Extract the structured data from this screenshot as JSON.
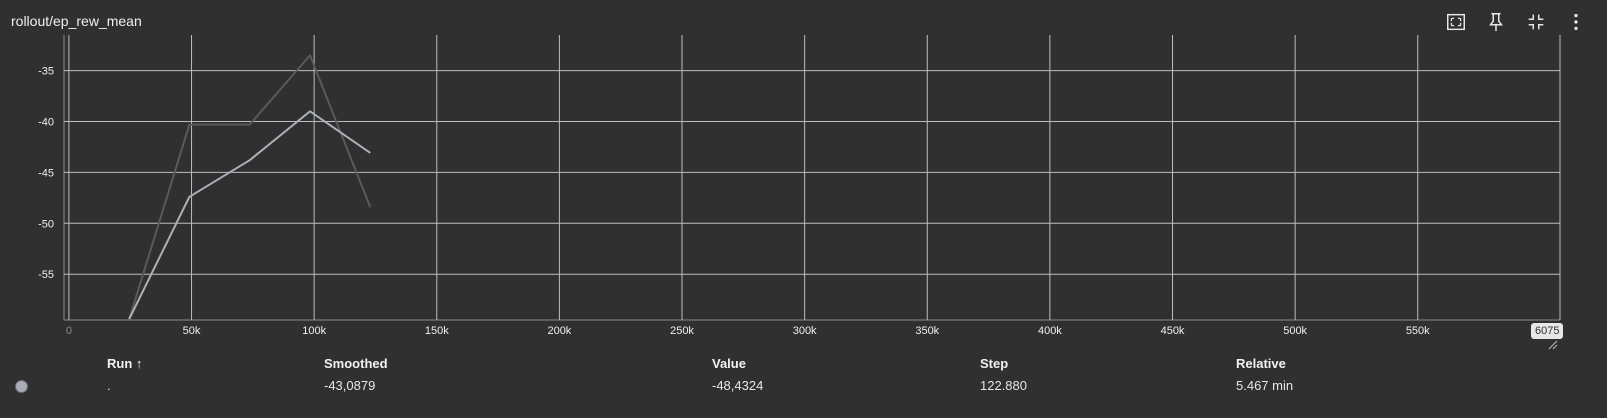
{
  "card": {
    "title": "rollout/ep_rew_mean",
    "toolbar": [
      {
        "name": "fit-domain-icon",
        "label": "Fit domain to data"
      },
      {
        "name": "pin-icon",
        "label": "Pin card"
      },
      {
        "name": "collapse-icon",
        "label": "Exit full size"
      },
      {
        "name": "more-vert-icon",
        "label": "More options"
      }
    ]
  },
  "chart_data": {
    "type": "line",
    "title": "rollout/ep_rew_mean",
    "xlabel": "",
    "ylabel": "",
    "xlim": [
      -2000,
      608000
    ],
    "ylim": [
      -59.5,
      -31.5
    ],
    "x_ticks": [
      0,
      50000,
      100000,
      150000,
      200000,
      250000,
      300000,
      350000,
      400000,
      450000,
      500000,
      550000
    ],
    "x_tick_labels": [
      "0",
      "50k",
      "100k",
      "150k",
      "200k",
      "250k",
      "300k",
      "350k",
      "400k",
      "450k",
      "500k",
      "550k"
    ],
    "y_ticks": [
      -35,
      -40,
      -45,
      -50,
      -55
    ],
    "y_tick_labels": [
      "-35",
      "-40",
      "-45",
      "-50",
      "-55"
    ],
    "x_edge_label": "6075",
    "grid": true,
    "series": [
      {
        "role": "raw",
        "color": "#5a5a5a",
        "x": [
          24576,
          49152,
          73728,
          98304,
          122880
        ],
        "y": [
          -59.4,
          -40.3,
          -40.3,
          -33.5,
          -48.4324
        ]
      },
      {
        "role": "smoothed",
        "color": "#aab0ba",
        "x": [
          24576,
          49152,
          73728,
          98304,
          122880
        ],
        "y": [
          -59.4,
          -47.4,
          -43.8,
          -39.0,
          -43.0879
        ]
      }
    ]
  },
  "table": {
    "headers": {
      "run": "Run ↑",
      "smoothed": "Smoothed",
      "value": "Value",
      "step": "Step",
      "relative": "Relative"
    },
    "rows": [
      {
        "run": ".",
        "smoothed": "-43,0879",
        "value": "-48,4324",
        "step": "122.880",
        "relative": "5.467 min",
        "color": "#a8adb6"
      }
    ]
  }
}
